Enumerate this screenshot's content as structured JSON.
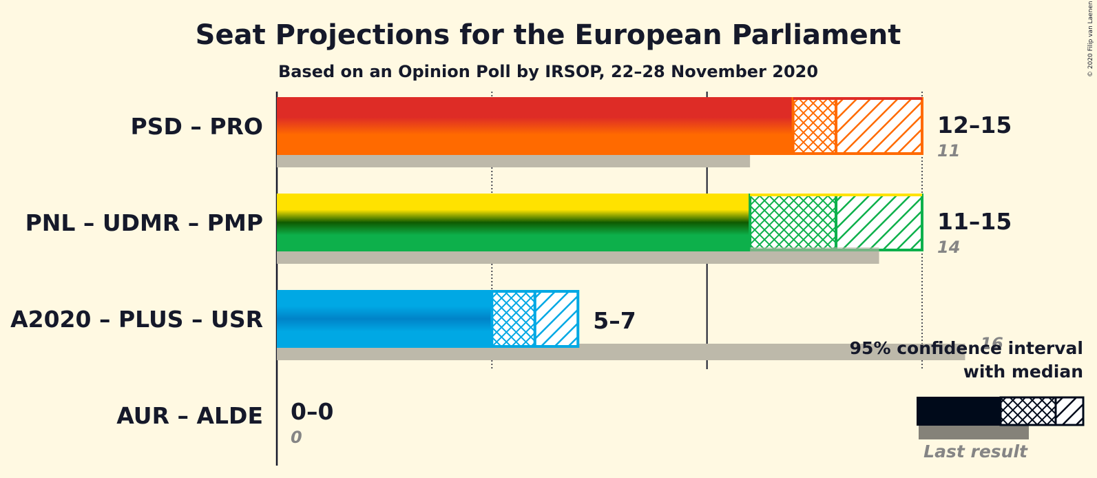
{
  "title": "Seat Projections for the European Parliament",
  "subtitle": "Based on an Opinion Poll by IRSOP, 22–28 November 2020",
  "copyright": "© 2020 Filip van Laenen",
  "legend": {
    "line1": "95% confidence interval",
    "line2": "with median",
    "last_result": "Last result"
  },
  "colors": {
    "background": "#fff9e2",
    "last_result_bar": "#bdb9aa",
    "text": "#15192a"
  },
  "chart_data": {
    "type": "bar",
    "orientation": "horizontal",
    "x_unit": "seats",
    "xlim": [
      0,
      15
    ],
    "gridlines": [
      5,
      10,
      15
    ],
    "categories": [
      "PSD – PRO",
      "PNL – UDMR – PMP",
      "A2020 – PLUS – USR",
      "AUR – ALDE"
    ],
    "series": [
      {
        "name": "95% confidence interval",
        "low": [
          12,
          11,
          5,
          0
        ],
        "median": [
          13,
          13,
          6,
          0
        ],
        "high": [
          15,
          15,
          7,
          0
        ],
        "range_labels": [
          "12–15",
          "11–15",
          "5–7",
          "0–0"
        ]
      },
      {
        "name": "Last result",
        "values": [
          11,
          14,
          16,
          0
        ],
        "value_labels": [
          "11",
          "14",
          "16",
          "0"
        ]
      }
    ],
    "party_colors": [
      {
        "top": "#de2c26",
        "bottom": "#ff6a00"
      },
      {
        "top": "#ffe200",
        "mid": "#0e5a00",
        "bottom": "#0db04b"
      },
      {
        "top": "#00a8e4",
        "mid": "#0083c8",
        "bottom": "#00a8e4"
      },
      {
        "top": "#777777",
        "bottom": "#777777"
      }
    ]
  }
}
